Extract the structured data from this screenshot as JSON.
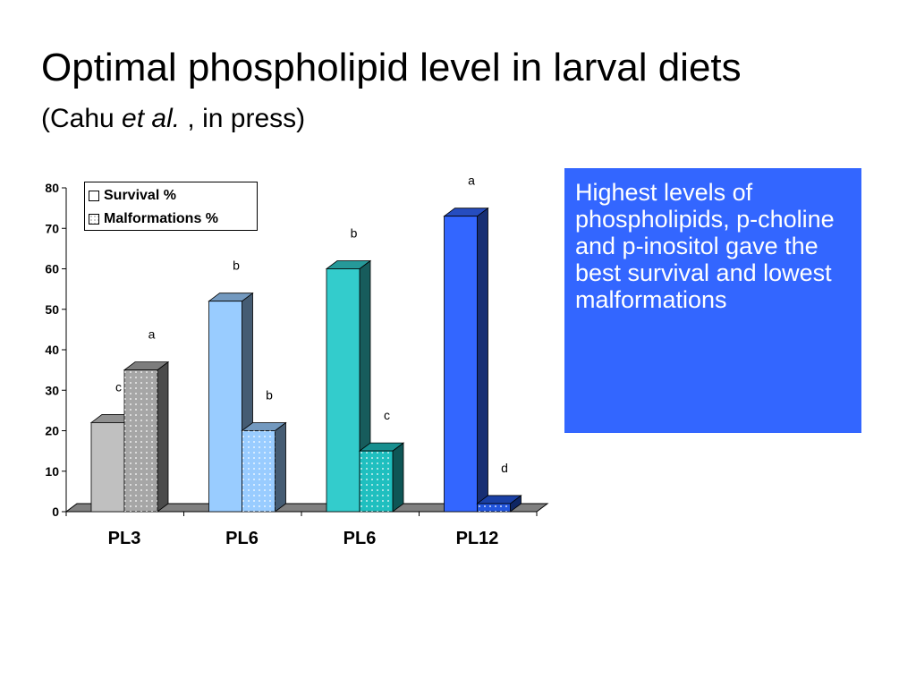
{
  "slide": {
    "title": "Optimal phospholipid level in larval diets",
    "subtitle_prefix": "(Cahu ",
    "subtitle_italic": "et al.",
    "subtitle_suffix": " , in press)",
    "callout_text": "Highest levels of phospholipids, p-choline and p-inositol gave the best survival and lowest malformations",
    "colors": {
      "callout_bg": "#3366ff",
      "callout_text": "#ffffff"
    }
  },
  "chart_data": {
    "type": "bar",
    "style": "3d-clustered-column",
    "categories": [
      "PL3",
      "PL6",
      "PL6",
      "PL12"
    ],
    "series": [
      {
        "name": "Survival %",
        "values": [
          22,
          52,
          60,
          73
        ],
        "labels": [
          "c",
          "b",
          "b",
          "a"
        ]
      },
      {
        "name": "Malformations %",
        "values": [
          35,
          20,
          15,
          2
        ],
        "labels": [
          "a",
          "b",
          "c",
          "d"
        ],
        "pattern": "dotted"
      }
    ],
    "ylim": [
      0,
      80
    ],
    "yticks": [
      0,
      10,
      20,
      30,
      40,
      50,
      60,
      70,
      80
    ],
    "grid": false,
    "legend_position": "top-left",
    "colors": {
      "survival": [
        "#c0c0c0",
        "#99ccff",
        "#33cccc",
        "#3366ff"
      ],
      "malformations": [
        "#a6a6a6",
        "#99ccff",
        "#1fbfbf",
        "#2255dd"
      ],
      "floor": "#808080"
    }
  }
}
